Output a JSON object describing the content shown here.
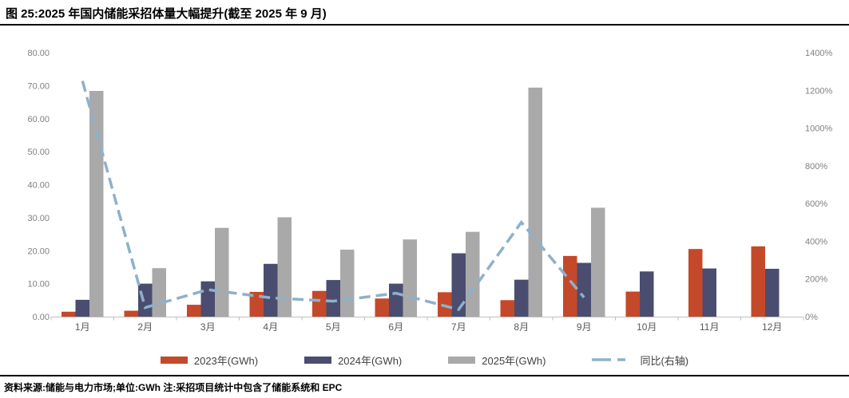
{
  "header": {
    "title": "图 25:2025 年国内储能采招体量大幅提升(截至 2025 年 9 月)"
  },
  "footer": {
    "text": "资料来源:储能与电力市场;单位:GWh  注:采招项目统计中包含了储能系统和 EPC"
  },
  "colors": {
    "series_2023": "#C4492A",
    "series_2024": "#4A4D6F",
    "series_2025": "#A9A9A9",
    "yoy_line": "#8DB1CA",
    "axis_text": "#7F7F7F",
    "month_text": "#595959",
    "axis_line": "#BFBFBF",
    "legend_text": "#404040",
    "rule": "#000000"
  },
  "chart_data": {
    "type": "bar",
    "title": "图 25:2025 年国内储能采招体量大幅提升(截至 2025 年 9 月)",
    "categories": [
      "1月",
      "2月",
      "3月",
      "4月",
      "5月",
      "6月",
      "7月",
      "8月",
      "9月",
      "10月",
      "11月",
      "12月"
    ],
    "series": [
      {
        "name": "2023年(GWh)",
        "type": "bar",
        "axis": "left",
        "color": "#C4492A",
        "values": [
          1.5,
          1.8,
          3.6,
          7.5,
          7.8,
          5.5,
          7.4,
          5.0,
          18.4,
          7.6,
          20.5,
          21.3
        ]
      },
      {
        "name": "2024年(GWh)",
        "type": "bar",
        "axis": "left",
        "color": "#4A4D6F",
        "values": [
          5.1,
          10.0,
          10.7,
          16.0,
          11.1,
          10.0,
          19.2,
          11.2,
          16.3,
          13.7,
          14.6,
          14.5
        ]
      },
      {
        "name": "2025年(GWh)",
        "type": "bar",
        "axis": "left",
        "color": "#A9A9A9",
        "values": [
          68.4,
          14.7,
          26.9,
          30.1,
          20.3,
          23.4,
          25.7,
          69.4,
          33.0,
          null,
          null,
          null
        ]
      },
      {
        "name": "同比(右轴)",
        "type": "line",
        "axis": "right",
        "color": "#8DB1CA",
        "values": [
          1250,
          48,
          143,
          100,
          82,
          124,
          38,
          500,
          102,
          null,
          null,
          null
        ]
      }
    ],
    "left_axis": {
      "min": 0,
      "max": 80,
      "step": 10,
      "labels": [
        "0.00",
        "10.00",
        "20.00",
        "30.00",
        "40.00",
        "50.00",
        "60.00",
        "70.00",
        "80.00"
      ]
    },
    "right_axis": {
      "min": 0,
      "max": 1400,
      "step": 200,
      "labels": [
        "0%",
        "200%",
        "400%",
        "600%",
        "800%",
        "1000%",
        "1200%",
        "1400%"
      ]
    },
    "grid": false,
    "legend_position": "bottom",
    "xlabel": "",
    "ylabel": ""
  }
}
